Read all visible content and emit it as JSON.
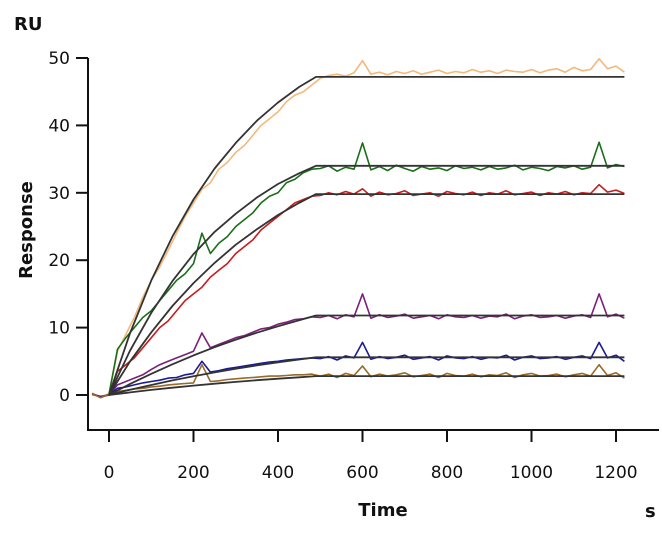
{
  "chart_data": {
    "type": "line",
    "title": "",
    "xlabel": "Time",
    "xunit": "s",
    "ylabel": "Response",
    "yunit": "RU",
    "xlim": [
      -50,
      1300
    ],
    "ylim": [
      -5,
      50
    ],
    "xticks": [
      0,
      200,
      400,
      600,
      800,
      1000,
      1200
    ],
    "yticks": [
      0,
      10,
      20,
      30,
      40,
      50
    ],
    "grid": false,
    "legend": "none",
    "fit_color": "#333333",
    "x": [
      -40,
      -20,
      0,
      20,
      40,
      60,
      80,
      100,
      120,
      140,
      160,
      180,
      200,
      220,
      240,
      260,
      280,
      300,
      320,
      340,
      360,
      380,
      400,
      420,
      440,
      460,
      480,
      500,
      520,
      540,
      560,
      580,
      600,
      620,
      640,
      660,
      680,
      700,
      720,
      740,
      760,
      780,
      800,
      820,
      840,
      860,
      880,
      900,
      920,
      940,
      960,
      980,
      1000,
      1020,
      1040,
      1060,
      1080,
      1100,
      1120,
      1140,
      1160,
      1180,
      1200,
      1220
    ],
    "series": [
      {
        "color": "#f4b87a",
        "values": [
          0.3,
          -0.4,
          0.2,
          6.5,
          9.0,
          11.5,
          14.5,
          17.0,
          19.0,
          21.5,
          24.0,
          26.5,
          28.5,
          30.5,
          31.5,
          33.5,
          34.5,
          36.0,
          37.0,
          38.5,
          40.0,
          41.0,
          42.0,
          43.5,
          44.5,
          45.0,
          46.0,
          47.0,
          47.4,
          47.6,
          47.3,
          47.8,
          49.6,
          47.6,
          47.9,
          47.5,
          48.0,
          47.7,
          48.1,
          47.6,
          47.9,
          48.2,
          47.7,
          48.0,
          47.8,
          48.3,
          47.9,
          48.1,
          47.7,
          48.2,
          48.0,
          47.9,
          48.3,
          47.8,
          48.2,
          48.4,
          47.9,
          48.6,
          48.1,
          48.3,
          49.9,
          48.4,
          48.8,
          47.9
        ]
      },
      {
        "color": "#1a6e1a",
        "values": [
          0.2,
          -0.3,
          0.1,
          6.8,
          8.5,
          10.0,
          11.5,
          12.5,
          14.0,
          15.5,
          17.0,
          18.0,
          19.5,
          24.0,
          21.0,
          22.5,
          23.5,
          25.0,
          26.0,
          27.0,
          28.5,
          29.5,
          30.0,
          31.5,
          32.0,
          33.0,
          33.5,
          33.6,
          34.0,
          33.2,
          33.8,
          33.5,
          37.4,
          33.4,
          33.9,
          33.3,
          34.1,
          33.6,
          33.2,
          33.9,
          33.5,
          33.7,
          33.3,
          34.0,
          33.6,
          33.8,
          33.4,
          33.9,
          33.5,
          33.7,
          34.1,
          33.4,
          33.8,
          33.6,
          33.3,
          33.9,
          33.7,
          34.0,
          33.5,
          33.8,
          37.5,
          33.7,
          34.2,
          33.9
        ]
      },
      {
        "color": "#c41e1e",
        "values": [
          0.1,
          -0.2,
          0.0,
          3.5,
          4.5,
          5.5,
          7.0,
          8.5,
          10.0,
          11.0,
          12.5,
          14.0,
          15.0,
          16.0,
          17.5,
          18.5,
          19.5,
          21.0,
          22.0,
          23.0,
          24.5,
          25.5,
          26.5,
          27.5,
          28.5,
          29.0,
          29.5,
          29.6,
          30.0,
          29.7,
          30.2,
          29.8,
          30.6,
          29.5,
          30.1,
          29.7,
          29.9,
          30.3,
          29.6,
          29.8,
          30.0,
          29.5,
          30.2,
          29.9,
          29.7,
          30.1,
          29.6,
          30.0,
          29.8,
          30.3,
          29.7,
          29.9,
          30.1,
          29.6,
          30.0,
          29.8,
          30.2,
          29.7,
          30.0,
          29.9,
          31.2,
          30.1,
          30.4,
          29.9
        ]
      },
      {
        "color": "#7a1f7a",
        "values": [
          0.2,
          -0.3,
          0.0,
          1.5,
          2.0,
          2.5,
          3.0,
          3.8,
          4.5,
          5.0,
          5.5,
          6.0,
          6.5,
          9.2,
          7.0,
          7.5,
          8.0,
          8.5,
          8.8,
          9.3,
          9.8,
          10.0,
          10.5,
          10.8,
          11.2,
          11.3,
          11.6,
          11.5,
          11.8,
          11.3,
          11.9,
          11.6,
          15.0,
          11.4,
          11.9,
          11.5,
          11.7,
          12.0,
          11.4,
          11.6,
          11.8,
          11.3,
          11.9,
          11.6,
          11.5,
          11.8,
          11.4,
          11.7,
          11.6,
          12.0,
          11.3,
          11.7,
          11.9,
          11.5,
          11.6,
          11.8,
          11.4,
          11.7,
          11.9,
          11.5,
          15.0,
          11.6,
          12.0,
          11.4
        ]
      },
      {
        "color": "#1a1a9a",
        "values": [
          0.1,
          -0.3,
          0.0,
          1.0,
          1.2,
          1.5,
          1.8,
          2.0,
          2.2,
          2.5,
          2.6,
          3.0,
          3.2,
          5.0,
          3.4,
          3.6,
          3.9,
          4.1,
          4.3,
          4.5,
          4.7,
          4.9,
          5.0,
          5.2,
          5.3,
          5.4,
          5.5,
          5.4,
          5.7,
          5.2,
          5.8,
          5.5,
          7.8,
          5.3,
          5.7,
          5.4,
          5.6,
          5.9,
          5.3,
          5.5,
          5.7,
          5.2,
          5.8,
          5.5,
          5.4,
          5.7,
          5.3,
          5.6,
          5.5,
          5.9,
          5.2,
          5.6,
          5.8,
          5.4,
          5.5,
          5.7,
          5.3,
          5.6,
          5.8,
          5.4,
          7.8,
          5.5,
          5.9,
          5.0
        ]
      },
      {
        "color": "#9a6a2a",
        "values": [
          0.2,
          -0.4,
          0.1,
          0.5,
          0.7,
          0.9,
          1.0,
          1.2,
          1.3,
          1.5,
          1.6,
          1.7,
          1.8,
          4.5,
          2.0,
          2.1,
          2.3,
          2.4,
          2.5,
          2.6,
          2.7,
          2.8,
          2.8,
          2.9,
          3.0,
          3.0,
          3.1,
          2.8,
          3.1,
          2.6,
          3.2,
          2.9,
          4.3,
          2.7,
          3.1,
          2.8,
          3.0,
          3.3,
          2.7,
          2.9,
          3.1,
          2.6,
          3.2,
          2.9,
          2.8,
          3.1,
          2.7,
          3.0,
          2.9,
          3.3,
          2.6,
          3.0,
          3.2,
          2.8,
          2.9,
          3.1,
          2.7,
          3.0,
          3.2,
          2.8,
          4.5,
          2.9,
          3.3,
          2.5
        ]
      }
    ],
    "fit_x": [
      0,
      50,
      100,
      150,
      200,
      250,
      300,
      350,
      400,
      450,
      490,
      1220
    ],
    "fits": [
      {
        "values": [
          0,
          9.2,
          17.0,
          23.5,
          29.0,
          33.6,
          37.4,
          40.7,
          43.4,
          45.7,
          47.2,
          47.2
        ]
      },
      {
        "values": [
          0,
          6.6,
          12.2,
          16.9,
          20.9,
          24.2,
          26.9,
          29.3,
          31.3,
          32.9,
          34.0,
          34.0
        ]
      },
      {
        "values": [
          0,
          5.0,
          9.3,
          13.2,
          16.6,
          19.6,
          22.3,
          24.6,
          26.7,
          28.5,
          29.8,
          29.8
        ]
      },
      {
        "values": [
          0,
          1.64,
          3.15,
          4.55,
          5.87,
          7.09,
          8.21,
          9.25,
          10.2,
          11.1,
          11.8,
          11.8
        ]
      },
      {
        "values": [
          0,
          0.78,
          1.49,
          2.16,
          2.79,
          3.36,
          3.9,
          4.39,
          4.85,
          5.27,
          5.6,
          5.6
        ]
      },
      {
        "values": [
          0,
          0.39,
          0.75,
          1.08,
          1.39,
          1.68,
          1.95,
          2.19,
          2.42,
          2.63,
          2.8,
          2.8
        ]
      }
    ]
  }
}
